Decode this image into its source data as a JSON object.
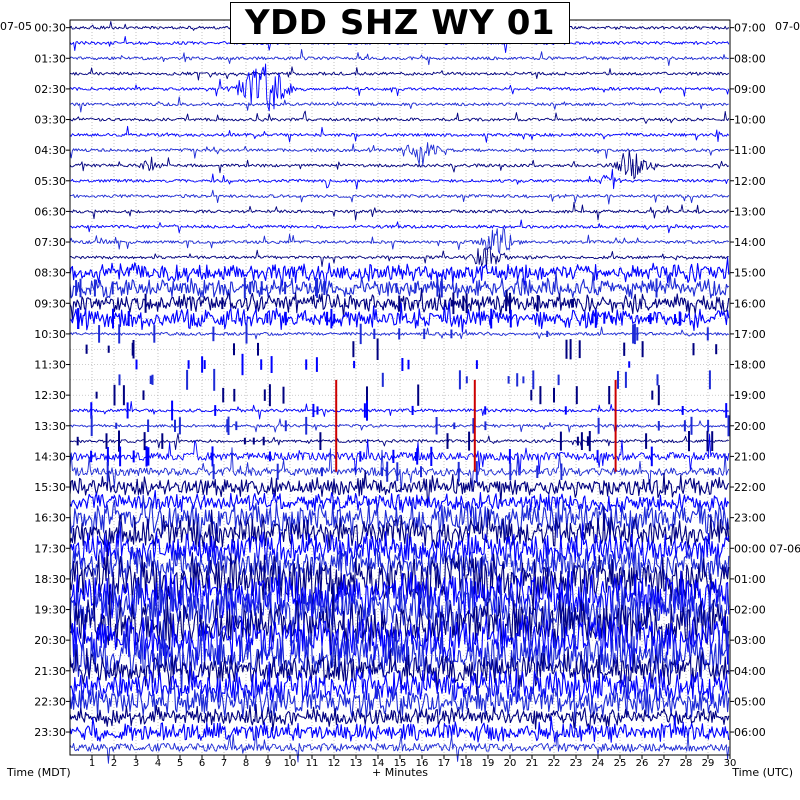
{
  "title": "YDD SHZ WY 01",
  "left_date": "07-05",
  "right_date": "07-0",
  "left_axis_title": "Time (MDT)",
  "right_axis_title": "Time (UTC)",
  "x_axis_title": "+ Minutes",
  "colors": {
    "trace_a": "#000080",
    "trace_b": "#0000ff",
    "trace_c": "#1e2bd6",
    "highlight": "#cc0000",
    "grid": "#9a9a9a",
    "background": "#ffffff",
    "frame": "#000000"
  },
  "chart_data": {
    "type": "helicorder",
    "title": "YDD SHZ WY 01",
    "xlabel": "+ Minutes",
    "xlim": [
      0,
      30
    ],
    "x_ticks": [
      1,
      2,
      3,
      4,
      5,
      6,
      7,
      8,
      9,
      10,
      11,
      12,
      13,
      14,
      15,
      16,
      17,
      18,
      19,
      20,
      21,
      22,
      23,
      24,
      25,
      26,
      27,
      28,
      29,
      30
    ],
    "rows_per_hour": 2,
    "row_count": 48,
    "row_color_cycle": [
      "trace_a",
      "trace_b",
      "trace_c"
    ],
    "left_ticks": [
      "00:30",
      "01:30",
      "02:30",
      "03:30",
      "04:30",
      "05:30",
      "06:30",
      "07:30",
      "08:30",
      "09:30",
      "10:30",
      "11:30",
      "12:30",
      "13:30",
      "14:30",
      "15:30",
      "16:30",
      "17:30",
      "18:30",
      "19:30",
      "20:30",
      "21:30",
      "22:30",
      "23:30"
    ],
    "right_ticks": [
      "07:00",
      "08:00",
      "09:00",
      "10:00",
      "11:00",
      "12:00",
      "13:00",
      "14:00",
      "15:00",
      "16:00",
      "17:00",
      "18:00",
      "19:00",
      "20:00",
      "21:00",
      "22:00",
      "23:00",
      "00:00 07-06",
      "01:00",
      "02:00",
      "03:00",
      "04:00",
      "05:00",
      "06:00"
    ],
    "row_activity": [
      1,
      1,
      1,
      1,
      1,
      1,
      1,
      1,
      1,
      1,
      1,
      1,
      1,
      1,
      1,
      1,
      3,
      3,
      3,
      3,
      1,
      0,
      0,
      0,
      0,
      1,
      1,
      1,
      2,
      2,
      3,
      3,
      4,
      4,
      4,
      4,
      5,
      5,
      5,
      5,
      5,
      5,
      4,
      4,
      4,
      3,
      3,
      2
    ],
    "events": [
      {
        "row": 4,
        "minute": 8.8,
        "size": "large"
      },
      {
        "row": 8,
        "minute": 16.0,
        "size": "medium"
      },
      {
        "row": 9,
        "minute": 3.7,
        "size": "small"
      },
      {
        "row": 9,
        "minute": 25.5,
        "size": "medium"
      },
      {
        "row": 10,
        "minute": 24.5,
        "size": "small"
      },
      {
        "row": 14,
        "minute": 19.5,
        "size": "medium"
      },
      {
        "row": 15,
        "minute": 19.0,
        "size": "medium"
      }
    ],
    "red_spikes_minutes": [
      12.1,
      18.4,
      24.8
    ]
  }
}
